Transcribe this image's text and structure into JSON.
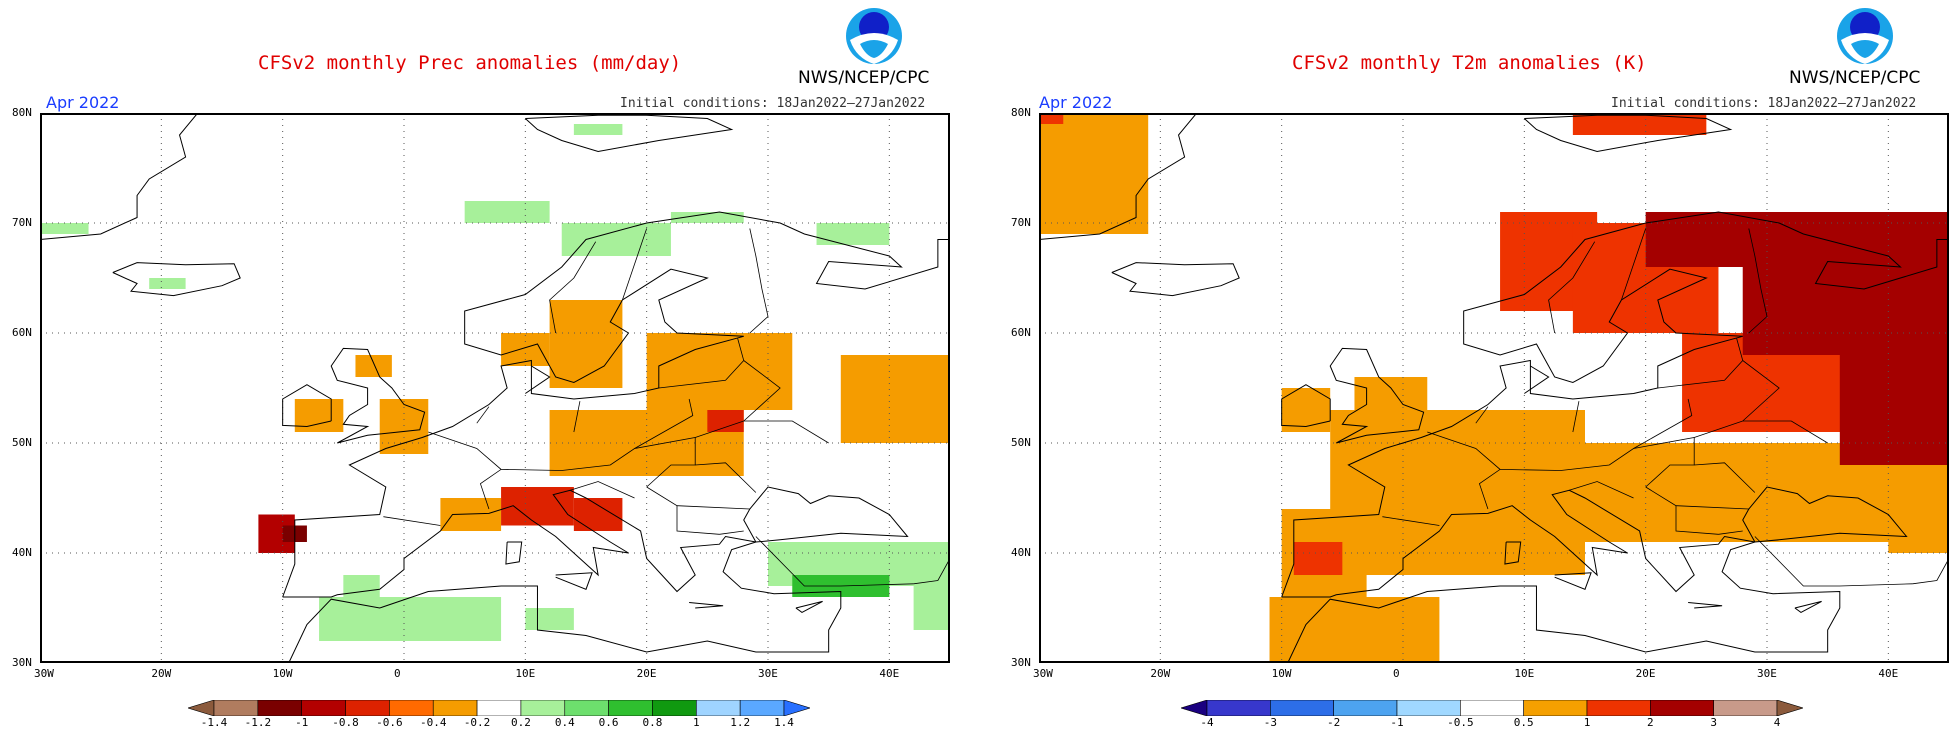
{
  "panels": [
    {
      "title": "CFSv2 monthly Prec anomalies (mm/day)",
      "credit": "NWS/NCEP/CPC",
      "month": "Apr 2022",
      "initial_conditions": "Initial conditions: 18Jan2022–27Jan2022",
      "lat_labels": [
        "80N",
        "70N",
        "60N",
        "50N",
        "40N",
        "30N"
      ],
      "lon_labels": [
        "30W",
        "20W",
        "10W",
        "0",
        "10E",
        "20E",
        "30E",
        "40E"
      ],
      "colorbar": {
        "labels": [
          "-1.4",
          "-1.2",
          "-1",
          "-0.8",
          "-0.6",
          "-0.4",
          "-0.2",
          "0.2",
          "0.4",
          "0.6",
          "0.8",
          "1",
          "1.2",
          "1.4"
        ],
        "colors": [
          "#8b5a3c",
          "#b07c5f",
          "#7a0000",
          "#b30000",
          "#dd2200",
          "#ff6a00",
          "#f59c00",
          "#ffffff",
          "#a7f09a",
          "#6ddf6d",
          "#2fbf2f",
          "#109910",
          "#9fd4ff",
          "#5aa8ff",
          "#2870ff"
        ]
      },
      "regions": [
        {
          "lon": [
            -12,
            -9
          ],
          "lat": [
            40,
            43.5
          ],
          "cls": "dred"
        },
        {
          "lon": [
            -10,
            -8
          ],
          "lat": [
            41,
            42.5
          ],
          "cls": "dred2"
        },
        {
          "lon": [
            -5,
            -2
          ],
          "lat": [
            36,
            38
          ],
          "cls": "lgreen"
        },
        {
          "lon": [
            -7,
            8
          ],
          "lat": [
            32,
            36
          ],
          "cls": "lgreen"
        },
        {
          "lon": [
            10,
            14
          ],
          "lat": [
            33,
            35
          ],
          "cls": "lgreen"
        },
        {
          "lon": [
            30,
            45
          ],
          "lat": [
            37,
            41
          ],
          "cls": "lgreen"
        },
        {
          "lon": [
            32,
            40
          ],
          "lat": [
            36,
            38
          ],
          "cls": "green"
        },
        {
          "lon": [
            42,
            45
          ],
          "lat": [
            33,
            38
          ],
          "cls": "lgreen"
        },
        {
          "lon": [
            3,
            8
          ],
          "lat": [
            42,
            45
          ],
          "cls": "orange"
        },
        {
          "lon": [
            8,
            14
          ],
          "lat": [
            42.5,
            46
          ],
          "cls": "red"
        },
        {
          "lon": [
            14,
            18
          ],
          "lat": [
            42,
            45
          ],
          "cls": "red"
        },
        {
          "lon": [
            12,
            28
          ],
          "lat": [
            47,
            53
          ],
          "cls": "orange"
        },
        {
          "lon": [
            20,
            32
          ],
          "lat": [
            53,
            60
          ],
          "cls": "orange"
        },
        {
          "lon": [
            25,
            28
          ],
          "lat": [
            51,
            53
          ],
          "cls": "red"
        },
        {
          "lon": [
            36,
            45
          ],
          "lat": [
            50,
            58
          ],
          "cls": "orange"
        },
        {
          "lon": [
            12,
            18
          ],
          "lat": [
            55,
            63
          ],
          "cls": "orange"
        },
        {
          "lon": [
            8,
            12
          ],
          "lat": [
            57,
            60
          ],
          "cls": "orange"
        },
        {
          "lon": [
            -2,
            2
          ],
          "lat": [
            49,
            54
          ],
          "cls": "orange"
        },
        {
          "lon": [
            -9,
            -5
          ],
          "lat": [
            51,
            54
          ],
          "cls": "orange"
        },
        {
          "lon": [
            -4,
            -1
          ],
          "lat": [
            56,
            58
          ],
          "cls": "orange"
        },
        {
          "lon": [
            5,
            12
          ],
          "lat": [
            70,
            72
          ],
          "cls": "lgreen"
        },
        {
          "lon": [
            13,
            22
          ],
          "lat": [
            67,
            70
          ],
          "cls": "lgreen"
        },
        {
          "lon": [
            22,
            28
          ],
          "lat": [
            70,
            71
          ],
          "cls": "lgreen"
        },
        {
          "lon": [
            34,
            40
          ],
          "lat": [
            68,
            70
          ],
          "cls": "lgreen"
        },
        {
          "lon": [
            -30,
            -26
          ],
          "lat": [
            69,
            70
          ],
          "cls": "lgreen"
        },
        {
          "lon": [
            -21,
            -18
          ],
          "lat": [
            64,
            65
          ],
          "cls": "lgreen"
        },
        {
          "lon": [
            14,
            18
          ],
          "lat": [
            78,
            79
          ],
          "cls": "lgreen"
        }
      ]
    },
    {
      "title": "CFSv2 monthly T2m anomalies (K)",
      "credit": "NWS/NCEP/CPC",
      "month": "Apr 2022",
      "initial_conditions": "Initial conditions: 18Jan2022–27Jan2022",
      "lat_labels": [
        "80N",
        "70N",
        "60N",
        "50N",
        "40N",
        "30N"
      ],
      "lon_labels": [
        "30W",
        "20W",
        "10W",
        "0",
        "10E",
        "20E",
        "30E",
        "40E"
      ],
      "colorbar": {
        "labels": [
          "-4",
          "-3",
          "-2",
          "-1",
          "-0.5",
          "0.5",
          "1",
          "2",
          "3",
          "4"
        ],
        "colors": [
          "#1a0080",
          "#3737cc",
          "#2d6ee8",
          "#4da3f0",
          "#a0d8ff",
          "#ffffff",
          "#f5a000",
          "#ee3300",
          "#a40000",
          "#c89a8a",
          "#8b5a3c"
        ]
      },
      "regions": [
        {
          "lon": [
            -30,
            -21
          ],
          "lat": [
            69,
            80
          ],
          "cls": "orange"
        },
        {
          "lon": [
            -30,
            -28
          ],
          "lat": [
            79,
            80
          ],
          "cls": "red"
        },
        {
          "lon": [
            -6,
            15
          ],
          "lat": [
            38,
            53
          ],
          "cls": "orange"
        },
        {
          "lon": [
            -10,
            -3
          ],
          "lat": [
            36,
            44
          ],
          "cls": "orange"
        },
        {
          "lon": [
            -9,
            -5
          ],
          "lat": [
            38,
            41
          ],
          "cls": "red"
        },
        {
          "lon": [
            -11,
            3
          ],
          "lat": [
            30,
            36
          ],
          "cls": "orange"
        },
        {
          "lon": [
            15,
            45
          ],
          "lat": [
            41,
            50
          ],
          "cls": "orange"
        },
        {
          "lon": [
            8,
            16
          ],
          "lat": [
            62,
            71
          ],
          "cls": "red"
        },
        {
          "lon": [
            14,
            26
          ],
          "lat": [
            60,
            70
          ],
          "cls": "red"
        },
        {
          "lon": [
            20,
            30
          ],
          "lat": [
            66,
            71
          ],
          "cls": "dred"
        },
        {
          "lon": [
            23,
            45
          ],
          "lat": [
            51,
            60
          ],
          "cls": "red"
        },
        {
          "lon": [
            28,
            45
          ],
          "lat": [
            58,
            71
          ],
          "cls": "dred"
        },
        {
          "lon": [
            36,
            45
          ],
          "lat": [
            48,
            66
          ],
          "cls": "dred"
        },
        {
          "lon": [
            40,
            45
          ],
          "lat": [
            40,
            48
          ],
          "cls": "orange"
        },
        {
          "lon": [
            14,
            25
          ],
          "lat": [
            78,
            80
          ],
          "cls": "red"
        },
        {
          "lon": [
            -4,
            2
          ],
          "lat": [
            50,
            56
          ],
          "cls": "orange"
        },
        {
          "lon": [
            -10,
            -6
          ],
          "lat": [
            51,
            55
          ],
          "cls": "orange"
        }
      ]
    }
  ]
}
